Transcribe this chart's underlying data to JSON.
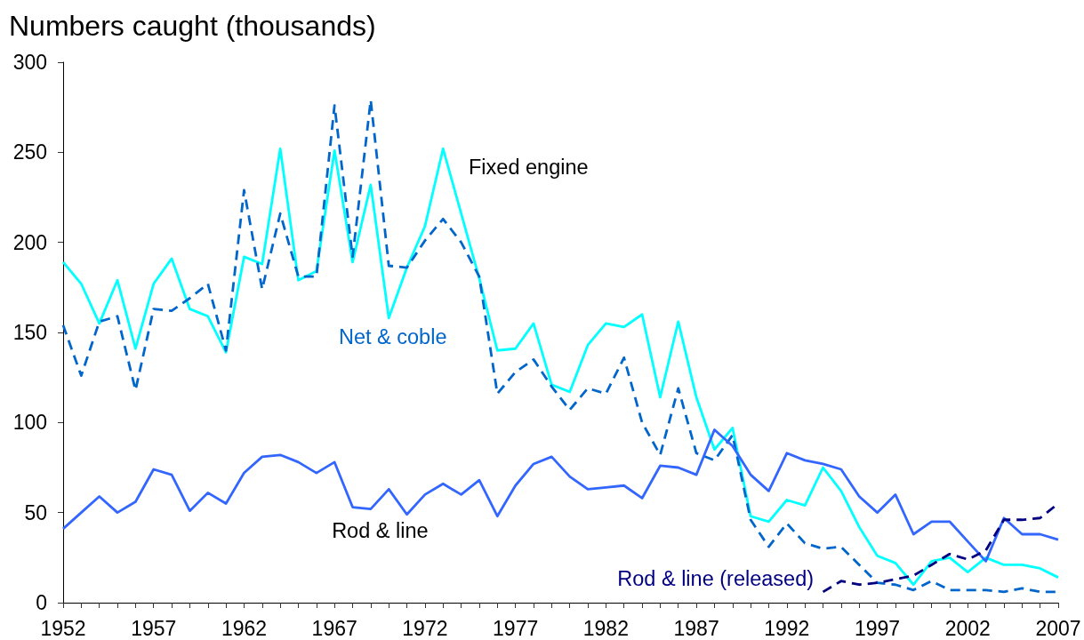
{
  "chart_data": {
    "type": "line",
    "ylabel": "Numbers caught (thousands)",
    "x": [
      1952,
      1953,
      1954,
      1955,
      1956,
      1957,
      1958,
      1959,
      1960,
      1961,
      1962,
      1963,
      1964,
      1965,
      1966,
      1967,
      1968,
      1969,
      1970,
      1971,
      1972,
      1973,
      1974,
      1975,
      1976,
      1977,
      1978,
      1979,
      1980,
      1981,
      1982,
      1983,
      1984,
      1985,
      1986,
      1987,
      1988,
      1989,
      1990,
      1991,
      1992,
      1993,
      1994,
      1995,
      1996,
      1997,
      1998,
      1999,
      2000,
      2001,
      2002,
      2003,
      2004,
      2005,
      2006,
      2007
    ],
    "series": [
      {
        "name": "Fixed engine",
        "color": "#00ffff",
        "line_style": "solid",
        "values": [
          189,
          177,
          155,
          179,
          141,
          177,
          191,
          163,
          159,
          139,
          192,
          188,
          252,
          179,
          184,
          251,
          189,
          232,
          158,
          186,
          209,
          252,
          216,
          180,
          140,
          141,
          155,
          121,
          117,
          143,
          155,
          153,
          160,
          114,
          156,
          114,
          85,
          97,
          48,
          45,
          57,
          54,
          75,
          62,
          42,
          26,
          22,
          10,
          23,
          25,
          17,
          25,
          21,
          21,
          19,
          14
        ]
      },
      {
        "name": "Net & coble",
        "color": "#0066cc",
        "line_style": "dashed",
        "values": [
          154,
          126,
          156,
          159,
          118,
          163,
          162,
          169,
          177,
          140,
          229,
          174,
          216,
          181,
          181,
          276,
          192,
          279,
          187,
          186,
          201,
          213,
          200,
          181,
          116,
          128,
          135,
          120,
          107,
          119,
          116,
          136,
          100,
          82,
          119,
          83,
          79,
          93,
          46,
          31,
          44,
          33,
          30,
          31,
          21,
          11,
          10,
          7,
          12,
          7,
          7,
          7,
          6,
          8,
          6,
          6
        ]
      },
      {
        "name": "Rod & line",
        "color": "#3366ff",
        "line_style": "solid",
        "values": [
          41,
          50,
          59,
          50,
          56,
          74,
          71,
          51,
          61,
          55,
          72,
          81,
          82,
          78,
          72,
          78,
          53,
          52,
          63,
          49,
          60,
          66,
          60,
          68,
          48,
          65,
          77,
          81,
          70,
          63,
          64,
          65,
          58,
          76,
          75,
          71,
          96,
          87,
          71,
          62,
          83,
          79,
          77,
          74,
          59,
          50,
          60,
          38,
          45,
          45,
          34,
          23,
          47,
          38,
          38,
          35
        ]
      },
      {
        "name": "Rod & line (released)",
        "color": "#000080",
        "line_style": "dashed",
        "x": [
          1994,
          1995,
          1996,
          1997,
          1998,
          1999,
          2000,
          2001,
          2002,
          2003,
          2004,
          2005,
          2006,
          2007
        ],
        "values": [
          6,
          12,
          10,
          11,
          13,
          15,
          21,
          27,
          24,
          29,
          46,
          46,
          47,
          55
        ]
      }
    ],
    "xlim": [
      1952,
      2007
    ],
    "xticks": [
      1952,
      {
        "value": 1953,
        "label": null
      },
      {
        "value": 1954,
        "label": null
      },
      {
        "value": 1955,
        "label": null
      },
      {
        "value": 1956,
        "label": null
      },
      1957,
      {
        "value": 1958,
        "label": null
      },
      {
        "value": 1959,
        "label": null
      },
      {
        "value": 1960,
        "label": null
      },
      {
        "value": 1961,
        "label": null
      },
      1962,
      {
        "value": 1963,
        "label": null
      },
      {
        "value": 1964,
        "label": null
      },
      {
        "value": 1965,
        "label": null
      },
      {
        "value": 1966,
        "label": null
      },
      1967,
      {
        "value": 1968,
        "label": null
      },
      {
        "value": 1969,
        "label": null
      },
      {
        "value": 1970,
        "label": null
      },
      {
        "value": 1971,
        "label": null
      },
      1972,
      {
        "value": 1973,
        "label": null
      },
      {
        "value": 1974,
        "label": null
      },
      {
        "value": 1975,
        "label": null
      },
      {
        "value": 1976,
        "label": null
      },
      1977,
      {
        "value": 1978,
        "label": null
      },
      {
        "value": 1979,
        "label": null
      },
      {
        "value": 1980,
        "label": null
      },
      {
        "value": 1981,
        "label": null
      },
      1982,
      {
        "value": 1983,
        "label": null
      },
      {
        "value": 1984,
        "label": null
      },
      {
        "value": 1985,
        "label": null
      },
      {
        "value": 1986,
        "label": null
      },
      1987,
      {
        "value": 1988,
        "label": null
      },
      {
        "value": 1989,
        "label": null
      },
      {
        "value": 1990,
        "label": null
      },
      {
        "value": 1991,
        "label": null
      },
      1992,
      {
        "value": 1993,
        "label": null
      },
      {
        "value": 1994,
        "label": null
      },
      {
        "value": 1995,
        "label": null
      },
      {
        "value": 1996,
        "label": null
      },
      1997,
      {
        "value": 1998,
        "label": null
      },
      {
        "value": 1999,
        "label": null
      },
      {
        "value": 2000,
        "label": null
      },
      {
        "value": 2001,
        "label": null
      },
      2002,
      {
        "value": 2003,
        "label": null
      },
      {
        "value": 2004,
        "label": null
      },
      {
        "value": 2005,
        "label": null
      },
      {
        "value": 2006,
        "label": null
      },
      2007
    ],
    "ylim": [
      0,
      300
    ],
    "yticks": [
      0,
      50,
      100,
      150,
      200,
      250,
      300
    ],
    "grid": false,
    "legend": false,
    "marker": "none"
  }
}
